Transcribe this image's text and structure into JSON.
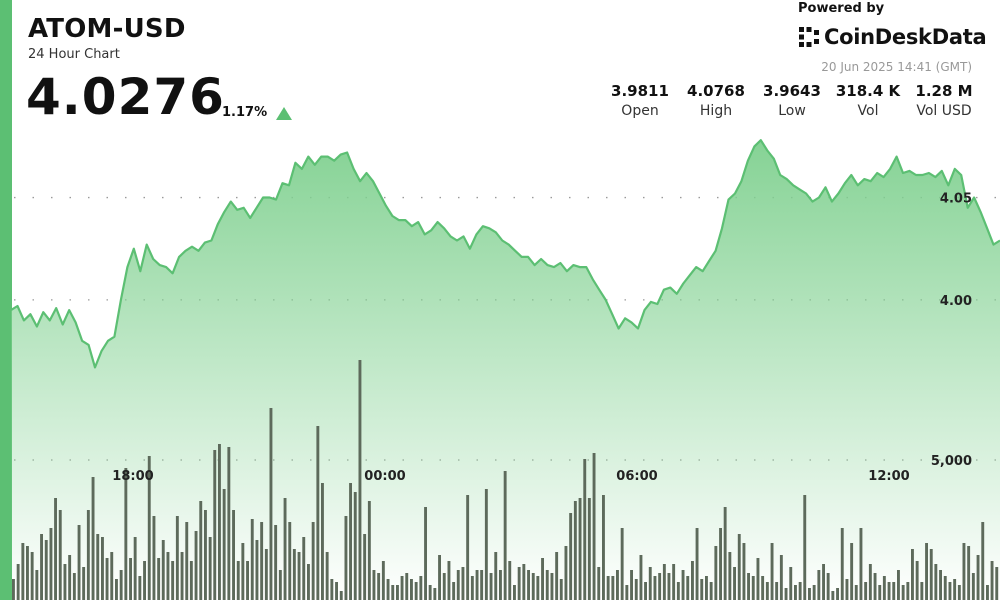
{
  "header": {
    "pair": "ATOM-USD",
    "subtitle": "24 Hour Chart",
    "price": "4.0276",
    "change_pct": "1.17%",
    "change_direction": "up",
    "powered_by": "Powered by",
    "brand": "CoinDeskData",
    "brand_logo_icon": "coindesk-logo-icon",
    "timestamp": "20 Jun 2025 14:41 (GMT)"
  },
  "stats": [
    {
      "value": "3.9811",
      "label": "Open"
    },
    {
      "value": "4.0768",
      "label": "High"
    },
    {
      "value": "3.9643",
      "label": "Low"
    },
    {
      "value": "318.4 K",
      "label": "Vol"
    },
    {
      "value": "1.28 M",
      "label": "Vol USD"
    }
  ],
  "colors": {
    "accent": "#5cbf73",
    "line": "#5cbf73",
    "area_top": "#7fd08f",
    "volume_bar": "#5d6a5b"
  },
  "chart_data": [
    {
      "type": "area",
      "x_ticks": [
        "18:00",
        "00:00",
        "06:00",
        "12:00"
      ],
      "y_ticks": [
        "4.05",
        "4.00"
      ],
      "ylim": [
        3.955,
        4.083
      ],
      "grid": true,
      "series": [
        {
          "values": [
            3.995,
            3.997,
            3.99,
            3.993,
            3.987,
            3.994,
            3.99,
            3.996,
            3.988,
            3.995,
            3.989,
            3.98,
            3.978,
            3.967,
            3.975,
            3.98,
            3.982,
            4.0,
            4.016,
            4.025,
            4.014,
            4.027,
            4.02,
            4.017,
            4.016,
            4.013,
            4.021,
            4.024,
            4.026,
            4.024,
            4.028,
            4.029,
            4.037,
            4.043,
            4.048,
            4.044,
            4.045,
            4.04,
            4.045,
            4.05,
            4.05,
            4.049,
            4.057,
            4.056,
            4.067,
            4.064,
            4.07,
            4.066,
            4.07,
            4.07,
            4.068,
            4.071,
            4.072,
            4.064,
            4.058,
            4.062,
            4.058,
            4.052,
            4.046,
            4.041,
            4.039,
            4.039,
            4.036,
            4.038,
            4.032,
            4.034,
            4.038,
            4.035,
            4.031,
            4.029,
            4.031,
            4.025,
            4.032,
            4.036,
            4.035,
            4.033,
            4.029,
            4.027,
            4.024,
            4.021,
            4.021,
            4.017,
            4.02,
            4.017,
            4.016,
            4.018,
            4.014,
            4.017,
            4.016,
            4.016,
            4.01,
            4.005,
            4.0,
            3.993,
            3.986,
            3.991,
            3.989,
            3.986,
            3.995,
            3.999,
            3.998,
            4.005,
            4.006,
            4.003,
            4.008,
            4.012,
            4.016,
            4.014,
            4.019,
            4.024,
            4.035,
            4.049,
            4.052,
            4.058,
            4.068,
            4.075,
            4.078,
            4.073,
            4.069,
            4.061,
            4.059,
            4.056,
            4.054,
            4.052,
            4.048,
            4.05,
            4.055,
            4.048,
            4.052,
            4.057,
            4.061,
            4.056,
            4.059,
            4.058,
            4.062,
            4.06,
            4.064,
            4.07,
            4.062,
            4.063,
            4.061,
            4.061,
            4.062,
            4.06,
            4.063,
            4.056,
            4.064,
            4.061,
            4.045,
            4.05,
            4.043,
            4.035,
            4.027,
            4.029
          ]
        }
      ]
    },
    {
      "type": "bar",
      "series": [
        {
          "values": [
            0.7,
            1.2,
            1.9,
            1.8,
            1.6,
            1.0,
            2.2,
            2.0,
            2.4,
            3.4,
            3.0,
            1.2,
            1.5,
            0.9,
            2.5,
            1.1,
            3.0,
            4.1,
            2.2,
            2.1,
            1.4,
            1.6,
            0.7,
            1.0,
            4.4,
            1.4,
            2.1,
            0.8,
            1.3,
            4.8,
            2.8,
            1.4,
            2.0,
            1.6,
            1.3,
            2.8,
            1.6,
            2.6,
            1.3,
            2.3,
            3.3,
            3.0,
            2.1,
            5.0,
            5.2,
            3.7,
            5.1,
            3.0,
            1.3,
            1.9,
            1.3,
            2.7,
            2.0,
            2.6,
            1.7,
            6.4,
            2.5,
            1.0,
            3.4,
            2.6,
            1.7,
            1.6,
            2.1,
            1.2,
            2.6,
            5.8,
            3.9,
            1.6,
            0.7,
            0.6,
            0.3,
            2.8,
            3.9,
            3.6,
            8.0,
            2.2,
            3.3,
            1.0,
            0.9,
            1.3,
            0.7,
            0.5,
            0.5,
            0.8,
            0.9,
            0.7,
            0.6,
            0.8,
            3.1,
            0.5,
            0.4,
            1.5,
            0.9,
            1.3,
            0.6,
            1.0,
            1.1,
            3.5,
            0.8,
            1.0,
            1.0,
            3.7,
            0.9,
            1.6,
            1.0,
            4.3,
            1.3,
            0.5,
            1.1,
            1.2,
            1.0,
            0.9,
            0.8,
            1.4,
            1.0,
            0.9,
            1.6,
            0.7,
            1.8,
            2.9,
            3.3,
            3.4,
            4.7,
            3.4,
            4.9,
            1.1,
            3.5,
            0.8,
            0.8,
            1.0,
            2.4,
            0.5,
            1.0,
            0.7,
            1.5,
            0.6,
            1.1,
            0.8,
            0.9,
            1.2,
            0.9,
            1.2,
            0.6,
            1.0,
            0.8,
            1.3,
            2.4,
            0.7,
            0.8,
            0.6,
            1.8,
            2.4,
            3.1,
            1.6,
            1.1,
            2.2,
            1.9,
            0.9,
            0.8,
            1.4,
            0.8,
            0.6,
            1.9,
            0.6,
            1.5,
            0.4,
            1.1,
            0.5,
            0.6,
            3.5,
            0.4,
            0.5,
            1.0,
            1.2,
            0.9,
            0.3,
            0.4,
            2.4,
            0.7,
            1.9,
            0.5,
            2.4,
            0.6,
            1.2,
            0.9,
            0.5,
            0.8,
            0.6,
            0.6,
            1.0,
            0.5,
            0.6,
            1.7,
            1.3,
            0.6,
            1.9,
            1.7,
            1.2,
            1.0,
            0.8,
            0.6,
            0.7,
            0.5,
            1.9,
            1.8,
            0.9,
            1.5,
            2.6,
            0.5,
            1.3,
            1.1
          ]
        }
      ],
      "y_ticks": [
        "5,000"
      ]
    }
  ]
}
